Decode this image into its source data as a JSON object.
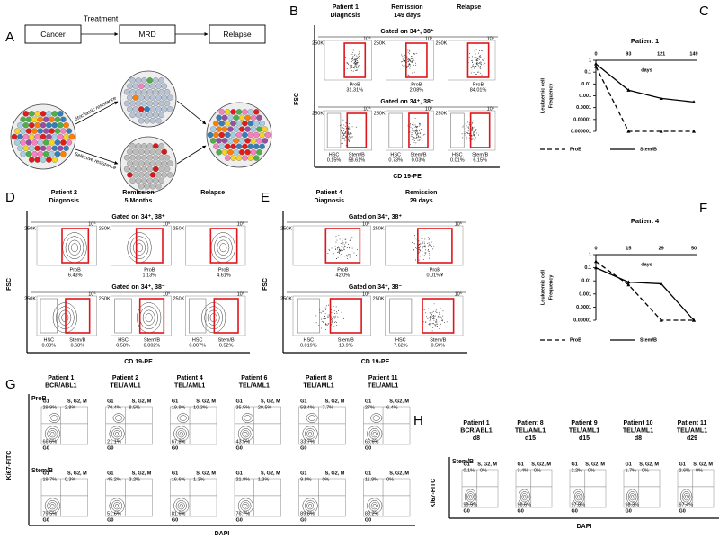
{
  "panel_labels": [
    "A",
    "B",
    "C",
    "D",
    "E",
    "F",
    "G",
    "H"
  ],
  "schematic": {
    "stages": [
      "Cancer",
      "MRD",
      "Relapse"
    ],
    "arrow_label": "Treatment",
    "paths": [
      "Stochastic resistance",
      "Selective resistance"
    ]
  },
  "flow_B": {
    "y_label": "FSC",
    "x_label": "CD 19-PE",
    "y_tick": "250K",
    "x_tick": "10⁵",
    "columns": [
      [
        "Patient 1",
        "Diagnosis"
      ],
      [
        "Remission",
        "149 days"
      ],
      [
        "Relapse"
      ]
    ],
    "rows": [
      {
        "gate": "Gated on 34⁺, 38⁺",
        "cells": [
          [
            {
              "name": "ProB",
              "pct": "31.31%"
            }
          ],
          [
            {
              "name": "ProB",
              "pct": "2.08%"
            }
          ],
          [
            {
              "name": "ProB",
              "pct": "84.01%"
            }
          ]
        ]
      },
      {
        "gate": "Gated on 34⁺, 38⁻",
        "cells": [
          [
            {
              "name": "HSC",
              "pct": "0.15%"
            },
            {
              "name": "Stem/B",
              "pct": "58.61%"
            }
          ],
          [
            {
              "name": "HSC",
              "pct": "0.73%"
            },
            {
              "name": "Stem/B",
              "pct": "0.03%"
            }
          ],
          [
            {
              "name": "HSC",
              "pct": "0.01%"
            },
            {
              "name": "Stem/B",
              "pct": "6.15%"
            }
          ]
        ]
      }
    ]
  },
  "flow_D": {
    "y_label": "FSC",
    "x_label": "CD 19-PE",
    "y_tick": "250K",
    "x_tick": "10⁵",
    "columns": [
      [
        "Patient 2",
        "Diagnosis"
      ],
      [
        "Remission",
        "5 Months"
      ],
      [
        "Relapse"
      ]
    ],
    "rows": [
      {
        "gate": "Gated on 34⁺, 38⁺",
        "cells": [
          [
            {
              "name": "ProB",
              "pct": "6.43%"
            }
          ],
          [
            {
              "name": "ProB",
              "pct": "1.13%"
            }
          ],
          [
            {
              "name": "ProB",
              "pct": "4.61%"
            }
          ]
        ]
      },
      {
        "gate": "Gated on 34⁺, 38⁻",
        "cells": [
          [
            {
              "name": "HSC",
              "pct": "0.03%"
            },
            {
              "name": "Stem/B",
              "pct": "0.68%"
            }
          ],
          [
            {
              "name": "HSC",
              "pct": "0.58%"
            },
            {
              "name": "Stem/B",
              "pct": "0.002%"
            }
          ],
          [
            {
              "name": "HSC",
              "pct": "0.007%"
            },
            {
              "name": "Stem/B",
              "pct": "0.52%"
            }
          ]
        ]
      }
    ]
  },
  "flow_E": {
    "y_label": "FSC",
    "x_label": "CD 19-PE",
    "y_tick": "250K",
    "x_tick": "10⁵",
    "columns": [
      [
        "Patient 4",
        "Diagnosis"
      ],
      [
        "Remission",
        "29 days"
      ]
    ],
    "rows": [
      {
        "gate": "Gated on 34⁺, 38⁺",
        "cells": [
          [
            {
              "name": "ProB",
              "pct": "42.0%"
            }
          ],
          [
            {
              "name": "ProB",
              "pct": "0.01%¥"
            }
          ]
        ]
      },
      {
        "gate": "Gated on 34⁺, 38⁻",
        "cells": [
          [
            {
              "name": "HSC",
              "pct": "0.019%"
            },
            {
              "name": "Stem/B",
              "pct": "13.9%"
            }
          ],
          [
            {
              "name": "HSC",
              "pct": "7.62%"
            },
            {
              "name": "Stem/B",
              "pct": "0.59%"
            }
          ]
        ]
      }
    ]
  },
  "chart_C": {
    "type": "line",
    "title": "Patient 1",
    "x_label": "days",
    "y_label": [
      "Leukaemic cell",
      "Frequency"
    ],
    "categories": [
      "0",
      "93",
      "121",
      "149"
    ],
    "log_y": true,
    "ylim": [
      1e-06,
      1
    ],
    "yticks": [
      1,
      0.1,
      0.01,
      0.001,
      0.0001,
      1e-05,
      1e-06
    ],
    "series": [
      {
        "name": "ProB",
        "color": "#000000",
        "dash": true,
        "values": [
          0.3,
          1e-06,
          1e-06,
          1e-06
        ]
      },
      {
        "name": "Stem/B",
        "color": "#000000",
        "dash": false,
        "values": [
          0.5,
          0.003,
          0.0006,
          0.0003
        ]
      }
    ]
  },
  "chart_F": {
    "type": "line",
    "title": "Patient 4",
    "x_label": "days",
    "y_label": [
      "Leukaemic cell",
      "Frequency"
    ],
    "categories": [
      "0",
      "15",
      "29",
      "50"
    ],
    "log_y": true,
    "ylim": [
      1e-05,
      1
    ],
    "yticks": [
      1,
      0.1,
      0.01,
      0.001,
      0.0001,
      1e-05
    ],
    "series": [
      {
        "name": "ProB",
        "color": "#000000",
        "dash": true,
        "values": [
          0.3,
          0.005,
          1e-05,
          1e-05
        ]
      },
      {
        "name": "Stem/B",
        "color": "#000000",
        "dash": false,
        "values": [
          0.1,
          0.008,
          0.006,
          1e-05
        ]
      }
    ]
  },
  "cycle_G": {
    "y_label": "Ki67-FITC",
    "x_label": "DAPI",
    "quadrants": [
      "G1",
      "S, G2, M",
      "G0"
    ],
    "columns": [
      [
        "Patient 1",
        "BCR/ABL1"
      ],
      [
        "Patient 2",
        "TEL/AML1"
      ],
      [
        "Patient 4",
        "TEL/AML1"
      ],
      [
        "Patient 6",
        "TEL/AML1"
      ],
      [
        "Patient 8",
        "TEL/AML1"
      ],
      [
        "Patient 11",
        "TEL/AML1"
      ]
    ],
    "rows": [
      {
        "name": "ProB",
        "cells": [
          [
            "29.9%",
            "2.8%",
            "66.6%"
          ],
          [
            "70.4%",
            "8.5%",
            "21.1%"
          ],
          [
            "19.9%",
            "10.3%",
            "67.8%"
          ],
          [
            "35.5%",
            "20.5%",
            "43.5%"
          ],
          [
            "58.4%",
            "7.7%",
            "33.7%"
          ],
          [
            "27%",
            "6.4%",
            "66.6%"
          ]
        ]
      },
      {
        "name": "Stem/B",
        "cells": [
          [
            "19.7%",
            "0.3%",
            "79.5%"
          ],
          [
            "45.2%",
            "3.2%",
            "51.6%"
          ],
          [
            "16.6%",
            "1.3%",
            "81.6%"
          ],
          [
            "21.8%",
            "1.3%",
            "76.7%"
          ],
          [
            "9.8%",
            "0%",
            "89.8%"
          ],
          [
            "11.8%",
            "0%",
            "88.2%"
          ]
        ]
      }
    ]
  },
  "cycle_H": {
    "y_label": "Ki67-FITC",
    "x_label": "DAPI",
    "quadrants": [
      "G1",
      "S, G2, M",
      "G0"
    ],
    "columns": [
      [
        "Patient 1",
        "BCR/ABL1",
        "d8"
      ],
      [
        "Patient 8",
        "TEL/AML1",
        "d15"
      ],
      [
        "Patient 9",
        "TEL/AML1",
        "d15"
      ],
      [
        "Patient 10",
        "TEL/AML1",
        "d8"
      ],
      [
        "Patient 11",
        "TEL/AML1",
        "d29"
      ]
    ],
    "rows": [
      {
        "name": "Stem/B",
        "cells": [
          [
            "0.1%",
            "0%",
            "99.9%"
          ],
          [
            "3.4%",
            "0%",
            "96.6%"
          ],
          [
            "2.2%",
            "0%",
            "97.8%"
          ],
          [
            "1.7%",
            "0%",
            "98.3%"
          ],
          [
            "2.6%",
            "0%",
            "97.4%"
          ]
        ]
      }
    ]
  }
}
